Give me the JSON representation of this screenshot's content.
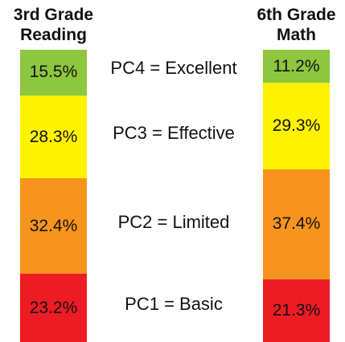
{
  "chart_data": {
    "type": "bar",
    "stacked": true,
    "categories": [
      "3rd Grade Reading",
      "6th Grade Math"
    ],
    "series": [
      {
        "name": "PC1 = Basic",
        "color": "#ed1c24",
        "values": [
          23.2,
          21.3
        ],
        "value_labels": [
          "23.2%",
          "21.3%"
        ]
      },
      {
        "name": "PC2 = Limited",
        "color": "#f7941d",
        "values": [
          32.4,
          37.4
        ],
        "value_labels": [
          "32.4%",
          "37.4%"
        ]
      },
      {
        "name": "PC3 = Effective",
        "color": "#fff200",
        "values": [
          28.3,
          29.3
        ],
        "value_labels": [
          "28.3%",
          "29.3%"
        ]
      },
      {
        "name": "PC4 = Excellent",
        "color": "#8dc63f",
        "values": [
          15.5,
          11.2
        ],
        "value_labels": [
          "15.5%",
          "11.2%"
        ]
      }
    ]
  }
}
